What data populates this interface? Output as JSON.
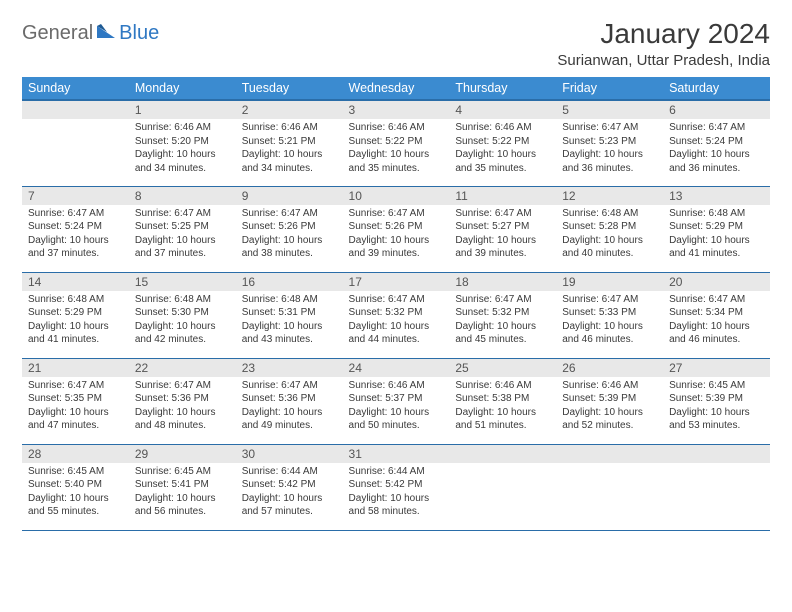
{
  "logo": {
    "text1": "General",
    "text2": "Blue"
  },
  "title": "January 2024",
  "location": "Surianwan, Uttar Pradesh, India",
  "colors": {
    "header_bg": "#3b8bd0",
    "header_border": "#2a6da8",
    "daynum_bg": "#e8e8e8",
    "text": "#3a3a3a",
    "logo_gray": "#6a6a6a",
    "logo_blue": "#2f78c3"
  },
  "weekdays": [
    "Sunday",
    "Monday",
    "Tuesday",
    "Wednesday",
    "Thursday",
    "Friday",
    "Saturday"
  ],
  "start_offset": 1,
  "days": [
    {
      "n": "1",
      "sr": "6:46 AM",
      "ss": "5:20 PM",
      "dl": "10 hours and 34 minutes."
    },
    {
      "n": "2",
      "sr": "6:46 AM",
      "ss": "5:21 PM",
      "dl": "10 hours and 34 minutes."
    },
    {
      "n": "3",
      "sr": "6:46 AM",
      "ss": "5:22 PM",
      "dl": "10 hours and 35 minutes."
    },
    {
      "n": "4",
      "sr": "6:46 AM",
      "ss": "5:22 PM",
      "dl": "10 hours and 35 minutes."
    },
    {
      "n": "5",
      "sr": "6:47 AM",
      "ss": "5:23 PM",
      "dl": "10 hours and 36 minutes."
    },
    {
      "n": "6",
      "sr": "6:47 AM",
      "ss": "5:24 PM",
      "dl": "10 hours and 36 minutes."
    },
    {
      "n": "7",
      "sr": "6:47 AM",
      "ss": "5:24 PM",
      "dl": "10 hours and 37 minutes."
    },
    {
      "n": "8",
      "sr": "6:47 AM",
      "ss": "5:25 PM",
      "dl": "10 hours and 37 minutes."
    },
    {
      "n": "9",
      "sr": "6:47 AM",
      "ss": "5:26 PM",
      "dl": "10 hours and 38 minutes."
    },
    {
      "n": "10",
      "sr": "6:47 AM",
      "ss": "5:26 PM",
      "dl": "10 hours and 39 minutes."
    },
    {
      "n": "11",
      "sr": "6:47 AM",
      "ss": "5:27 PM",
      "dl": "10 hours and 39 minutes."
    },
    {
      "n": "12",
      "sr": "6:48 AM",
      "ss": "5:28 PM",
      "dl": "10 hours and 40 minutes."
    },
    {
      "n": "13",
      "sr": "6:48 AM",
      "ss": "5:29 PM",
      "dl": "10 hours and 41 minutes."
    },
    {
      "n": "14",
      "sr": "6:48 AM",
      "ss": "5:29 PM",
      "dl": "10 hours and 41 minutes."
    },
    {
      "n": "15",
      "sr": "6:48 AM",
      "ss": "5:30 PM",
      "dl": "10 hours and 42 minutes."
    },
    {
      "n": "16",
      "sr": "6:48 AM",
      "ss": "5:31 PM",
      "dl": "10 hours and 43 minutes."
    },
    {
      "n": "17",
      "sr": "6:47 AM",
      "ss": "5:32 PM",
      "dl": "10 hours and 44 minutes."
    },
    {
      "n": "18",
      "sr": "6:47 AM",
      "ss": "5:32 PM",
      "dl": "10 hours and 45 minutes."
    },
    {
      "n": "19",
      "sr": "6:47 AM",
      "ss": "5:33 PM",
      "dl": "10 hours and 46 minutes."
    },
    {
      "n": "20",
      "sr": "6:47 AM",
      "ss": "5:34 PM",
      "dl": "10 hours and 46 minutes."
    },
    {
      "n": "21",
      "sr": "6:47 AM",
      "ss": "5:35 PM",
      "dl": "10 hours and 47 minutes."
    },
    {
      "n": "22",
      "sr": "6:47 AM",
      "ss": "5:36 PM",
      "dl": "10 hours and 48 minutes."
    },
    {
      "n": "23",
      "sr": "6:47 AM",
      "ss": "5:36 PM",
      "dl": "10 hours and 49 minutes."
    },
    {
      "n": "24",
      "sr": "6:46 AM",
      "ss": "5:37 PM",
      "dl": "10 hours and 50 minutes."
    },
    {
      "n": "25",
      "sr": "6:46 AM",
      "ss": "5:38 PM",
      "dl": "10 hours and 51 minutes."
    },
    {
      "n": "26",
      "sr": "6:46 AM",
      "ss": "5:39 PM",
      "dl": "10 hours and 52 minutes."
    },
    {
      "n": "27",
      "sr": "6:45 AM",
      "ss": "5:39 PM",
      "dl": "10 hours and 53 minutes."
    },
    {
      "n": "28",
      "sr": "6:45 AM",
      "ss": "5:40 PM",
      "dl": "10 hours and 55 minutes."
    },
    {
      "n": "29",
      "sr": "6:45 AM",
      "ss": "5:41 PM",
      "dl": "10 hours and 56 minutes."
    },
    {
      "n": "30",
      "sr": "6:44 AM",
      "ss": "5:42 PM",
      "dl": "10 hours and 57 minutes."
    },
    {
      "n": "31",
      "sr": "6:44 AM",
      "ss": "5:42 PM",
      "dl": "10 hours and 58 minutes."
    }
  ],
  "labels": {
    "sunrise": "Sunrise:",
    "sunset": "Sunset:",
    "daylight": "Daylight:"
  }
}
